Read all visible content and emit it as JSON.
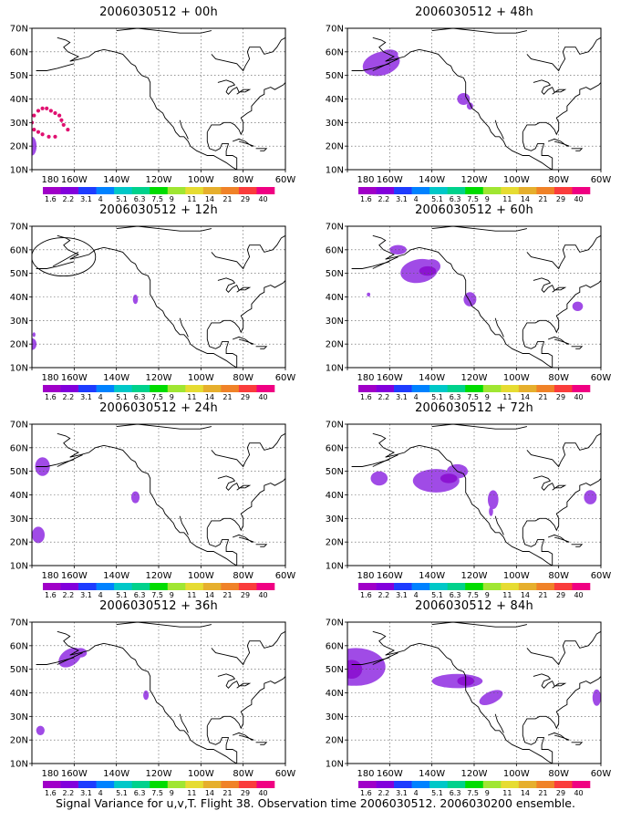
{
  "caption": "Signal Variance for u,v,T. Flight 38. Observation time 2006030512. 2006030200 ensemble.",
  "y_ticks": [
    "70N",
    "60N",
    "50N",
    "40N",
    "30N",
    "20N",
    "10N"
  ],
  "x_ticks": [
    "180",
    "160W",
    "140W",
    "120W",
    "100W",
    "80W",
    "60W"
  ],
  "colorbar": {
    "labels": [
      "1.6",
      "2.2",
      "3.1",
      "4",
      "5.1",
      "6.3",
      "7.5",
      "9",
      "11",
      "14",
      "21",
      "29",
      "40"
    ],
    "colors": [
      "#a000c8",
      "#8200dc",
      "#1e3cff",
      "#0082ff",
      "#00c8c8",
      "#00d28c",
      "#00dc00",
      "#a0e632",
      "#e6dc32",
      "#e6af2d",
      "#f08228",
      "#fa3c3c",
      "#f00082"
    ]
  },
  "panels": [
    {
      "title": "2006030512 + 00h"
    },
    {
      "title": "2006030512 + 48h"
    },
    {
      "title": "2006030512 + 12h"
    },
    {
      "title": "2006030512 + 60h"
    },
    {
      "title": "2006030512 + 24h"
    },
    {
      "title": "2006030512 + 72h"
    },
    {
      "title": "2006030512 + 36h"
    },
    {
      "title": "2006030512 + 84h"
    }
  ],
  "colors": {
    "signal": "#8c14d2",
    "signal_light": "#a04be6",
    "flight_track": "#e01070"
  }
}
